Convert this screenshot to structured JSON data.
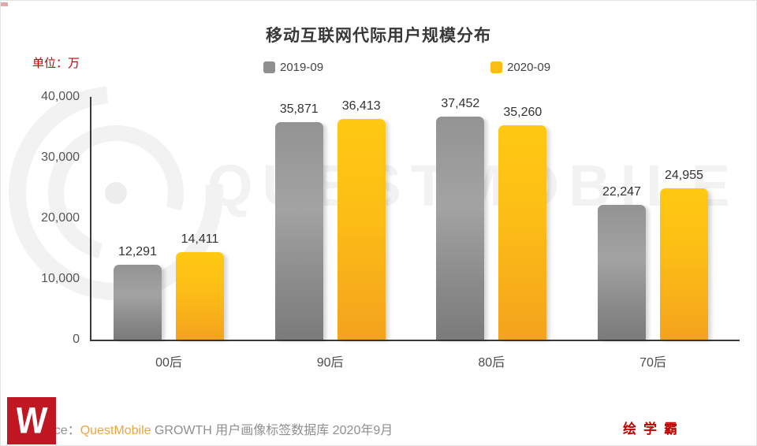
{
  "chart": {
    "title": "移动互联网代际用户规模分布",
    "unit_label": "单位：万",
    "watermark_text": "QUESTMOBILE"
  },
  "source_line": {
    "prefix": "Source：",
    "brand": "QuestMobile",
    "suffix": " GROWTH 用户画像标签数据库 2020年9月"
  },
  "footer": {
    "brand_right": "绘学霸",
    "logo_letter": "W"
  },
  "colors": {
    "series_2019": "#8f8f8f",
    "series_2020": "#fcbe16",
    "unit_label_red": "#c00000",
    "source_brand_orange": "#f0a43c",
    "logo_red": "#c11723",
    "axis_dark": "#3a3a3a"
  },
  "chart_data": {
    "type": "bar",
    "title": "移动互联网代际用户规模分布",
    "categories": [
      "00后",
      "90后",
      "80后",
      "70后"
    ],
    "series": [
      {
        "name": "2019-09",
        "color": "#8f8f8f",
        "values": [
          12291,
          35871,
          37452,
          22247
        ]
      },
      {
        "name": "2020-09",
        "color": "#fcbe16",
        "values": [
          14411,
          36413,
          35260,
          24955
        ]
      }
    ],
    "yticks": [
      "40,000",
      "30,000",
      "20,000",
      "10,000",
      "0"
    ],
    "ylim": [
      0,
      40000
    ],
    "ylabel": "单位：万",
    "legend_position": "top",
    "grid": false
  }
}
